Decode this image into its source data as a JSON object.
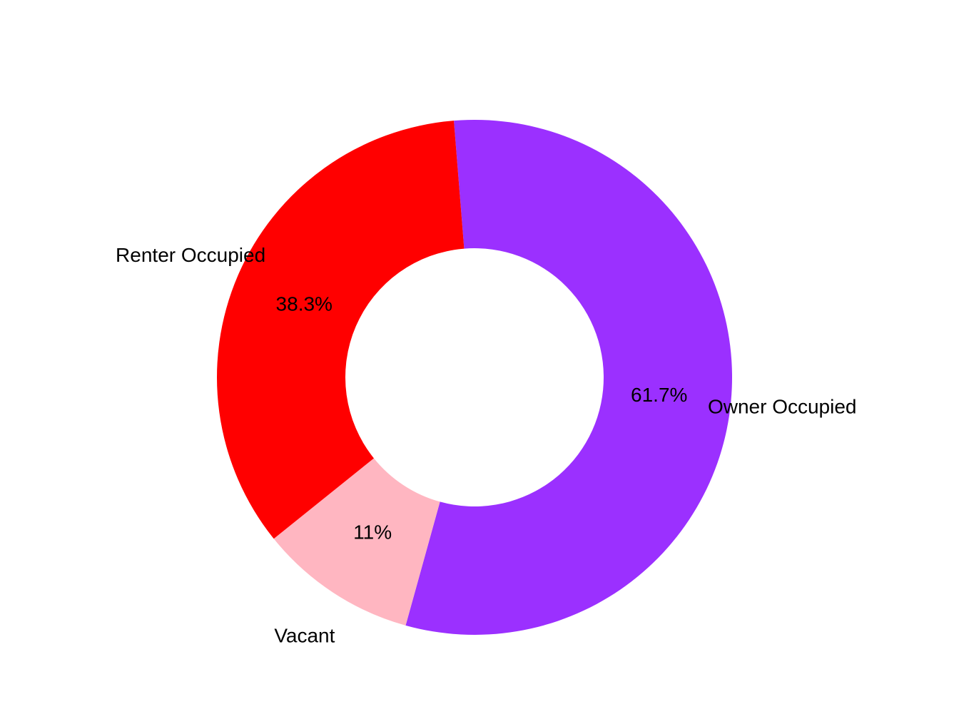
{
  "chart_data": {
    "type": "pie",
    "donut": true,
    "slices": [
      {
        "label": "Owner Occupied",
        "value": 61.7,
        "pct_label": "61.7%",
        "color": "#9B30FF"
      },
      {
        "label": "Vacant",
        "value": 11.0,
        "pct_label": "11%",
        "color": "#FFB6C1"
      },
      {
        "label": "Renter Occupied",
        "value": 38.3,
        "pct_label": "38.3%",
        "color": "#FF0000"
      }
    ],
    "legend": "none"
  }
}
